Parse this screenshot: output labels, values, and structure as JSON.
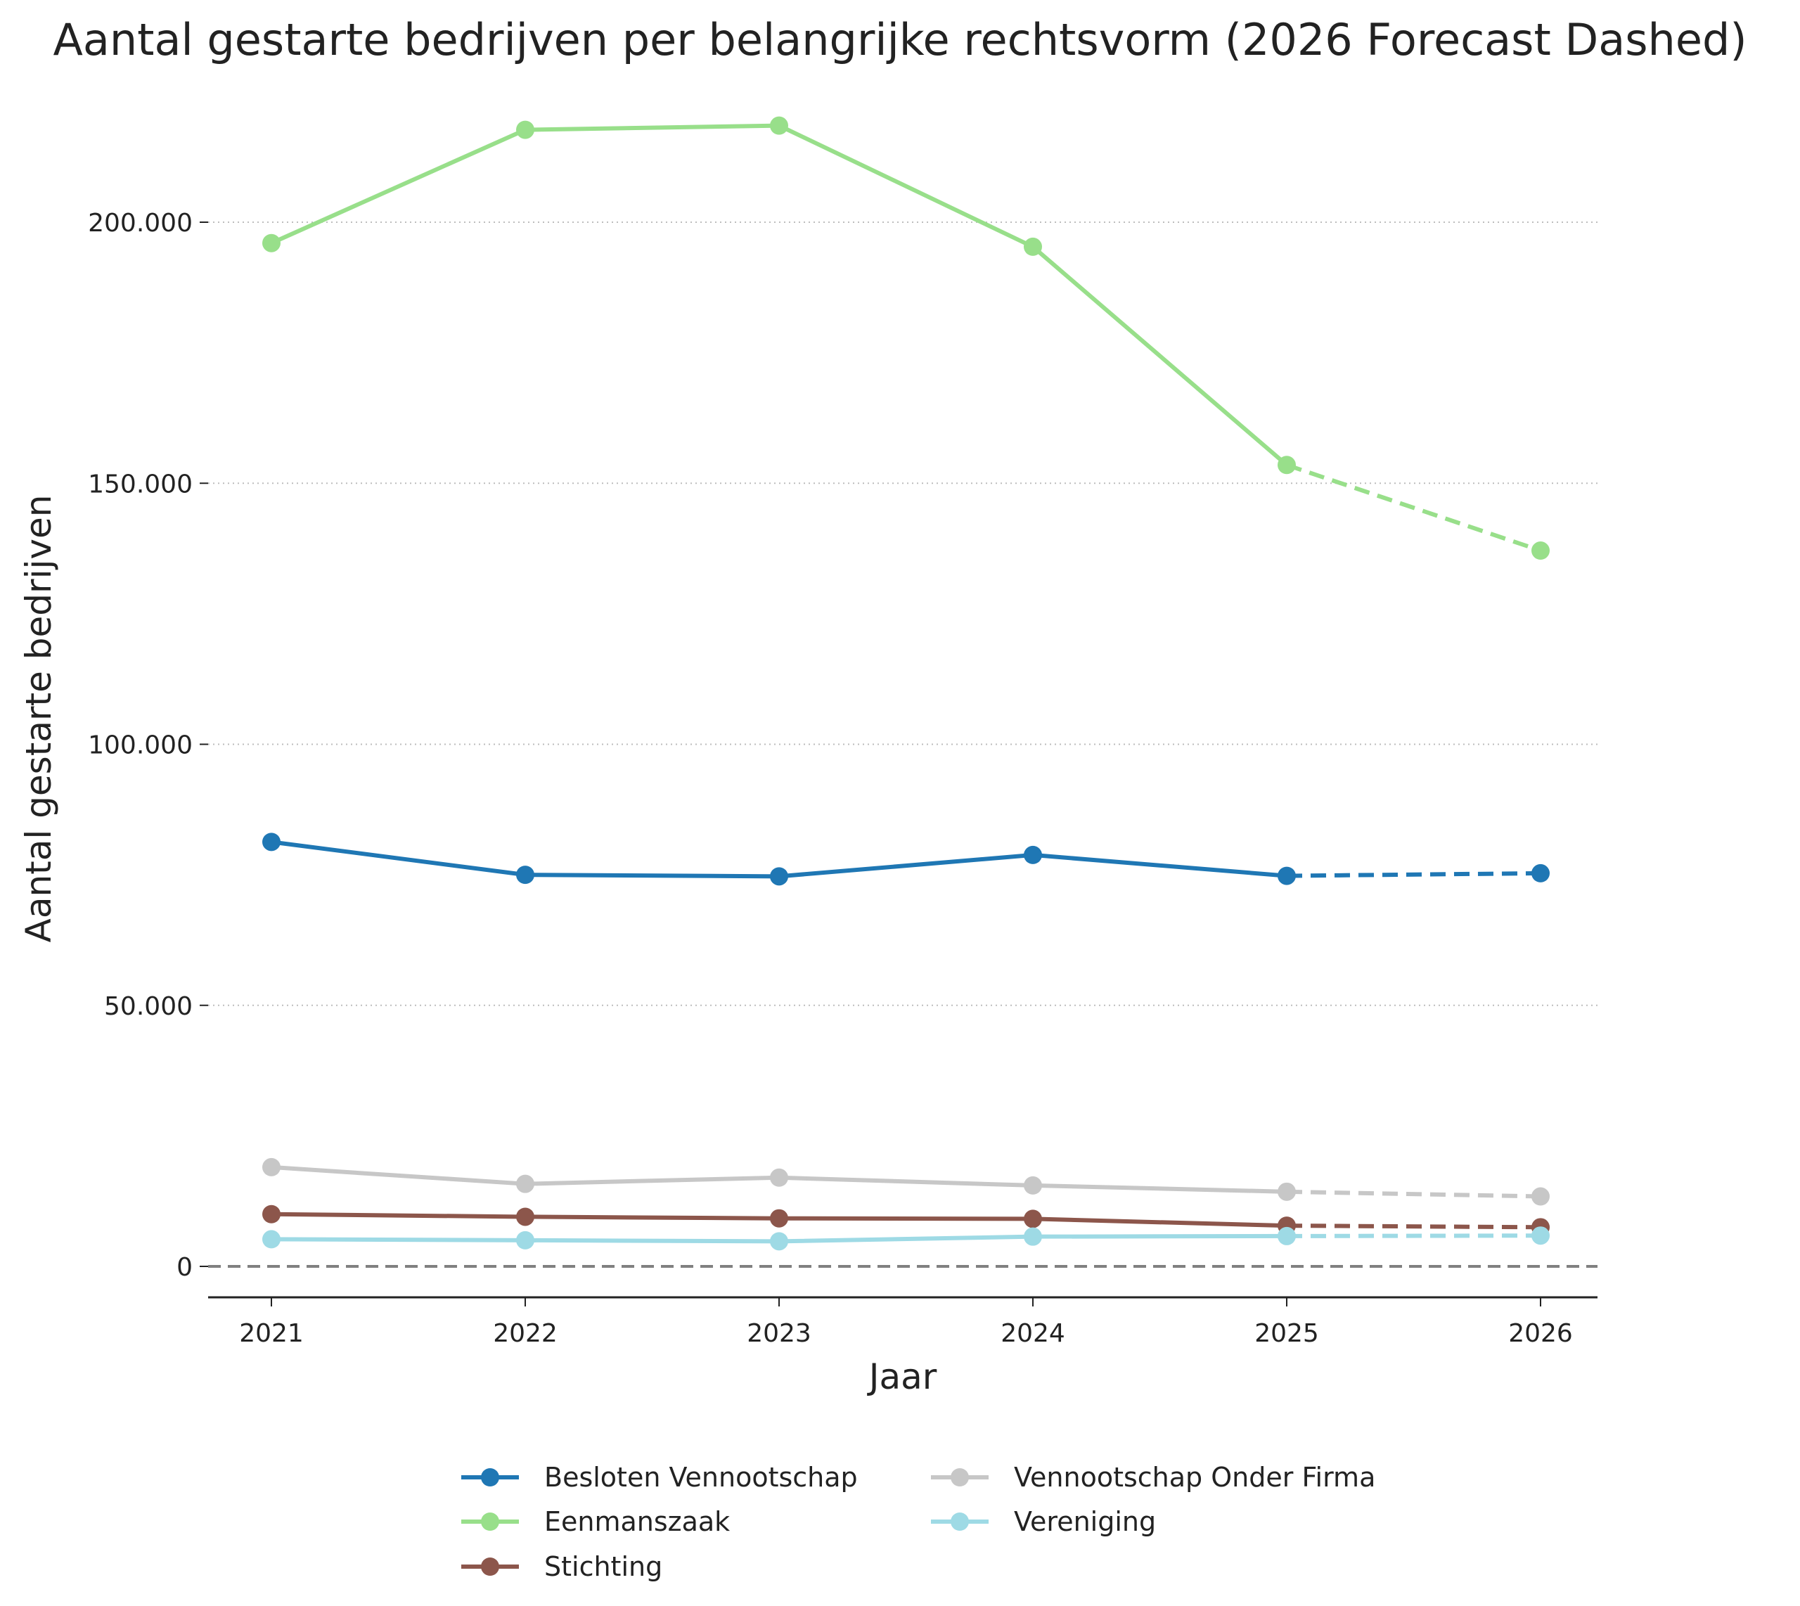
{
  "chart_data": {
    "type": "line",
    "title": "Aantal gestarte bedrijven per belangrijke rechtsvorm (2026 Forecast Dashed)",
    "xlabel": "Jaar",
    "ylabel": "Aantal gestarte bedrijven",
    "x": [
      "2021",
      "2022",
      "2023",
      "2024",
      "2025",
      "2026"
    ],
    "forecast_start_index": 4,
    "ylim": [
      -6000,
      218000
    ],
    "yticks": [
      0,
      50000,
      100000,
      150000,
      200000
    ],
    "ytick_labels": [
      "0",
      "50.000",
      "100.000",
      "150.000",
      "200.000"
    ],
    "grid": "horizontal dotted",
    "zero_line": "dashed",
    "legend_position": "bottom-center",
    "series": [
      {
        "name": "Besloten Vennootschap",
        "color": "#1f77b4",
        "values": [
          81300,
          75000,
          74700,
          78800,
          74800,
          75300
        ]
      },
      {
        "name": "Eenmanszaak",
        "color": "#98df8a",
        "values": [
          196000,
          217700,
          218500,
          195300,
          153500,
          137100
        ]
      },
      {
        "name": "Stichting",
        "color": "#8c564b",
        "values": [
          10000,
          9500,
          9200,
          9100,
          7800,
          7500
        ]
      },
      {
        "name": "Vennootschap Onder Firma",
        "color": "#c7c7c7",
        "values": [
          19000,
          15800,
          17000,
          15500,
          14300,
          13400
        ]
      },
      {
        "name": "Vereniging",
        "color": "#9edae5",
        "values": [
          5200,
          5000,
          4800,
          5700,
          5800,
          5900
        ]
      }
    ]
  }
}
